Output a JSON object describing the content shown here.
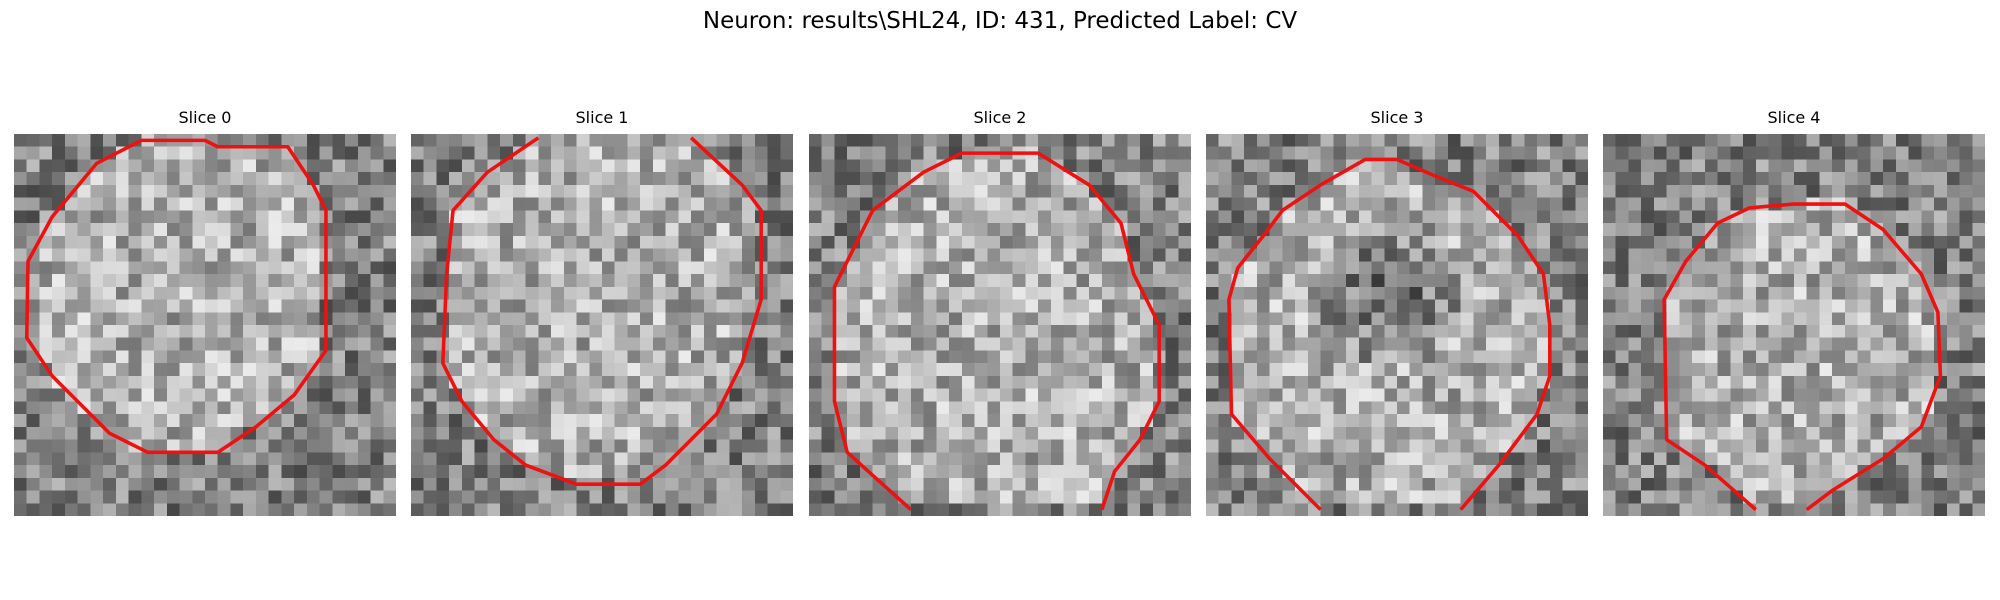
{
  "figure": {
    "title": "Neuron: results\\SHL24, ID: 431, Predicted Label: CV"
  },
  "slices": [
    {
      "title": "Slice 0",
      "seed": 11,
      "inner_tone": "light",
      "contour": "closed"
    },
    {
      "title": "Slice 1",
      "seed": 23,
      "inner_tone": "light",
      "contour": "open-top"
    },
    {
      "title": "Slice 2",
      "seed": 37,
      "inner_tone": "light",
      "contour": "open-bottom"
    },
    {
      "title": "Slice 3",
      "seed": 41,
      "inner_tone": "dark",
      "contour": "open-bottom"
    },
    {
      "title": "Slice 4",
      "seed": 53,
      "inner_tone": "light",
      "contour": "open-bottom"
    }
  ],
  "colors": {
    "contour": "#ee1111",
    "background": "#ffffff"
  }
}
